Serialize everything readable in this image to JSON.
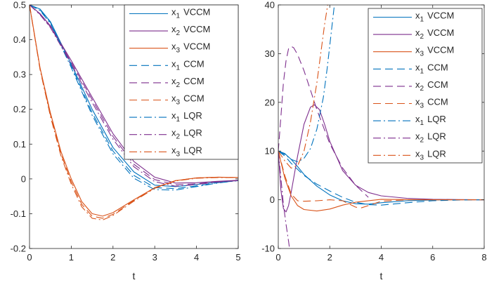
{
  "chart_data": [
    {
      "type": "line",
      "panel": "left",
      "xlabel": "t",
      "ylabel": "",
      "xlim": [
        0,
        5
      ],
      "ylim": [
        -0.2,
        0.5
      ],
      "xticks": [
        "0",
        "1",
        "2",
        "3",
        "4",
        "5"
      ],
      "yticks": [
        "-0.2",
        "-0.1",
        "0",
        "0.1",
        "0.2",
        "0.3",
        "0.4",
        "0.5"
      ],
      "grid": false,
      "legend_position": "top-right",
      "series": [
        {
          "name": "x1 VCCM",
          "label_main": "x",
          "label_sub": "1",
          "label_suffix": "VCCM",
          "color": "#0072BD",
          "style": "solid",
          "x": [
            0,
            0.25,
            0.5,
            1,
            1.5,
            2,
            2.5,
            3,
            3.5,
            4,
            4.5,
            5
          ],
          "y": [
            0.5,
            0.488,
            0.452,
            0.33,
            0.2,
            0.09,
            0.02,
            -0.018,
            -0.022,
            -0.016,
            -0.009,
            -0.004
          ]
        },
        {
          "name": "x2 VCCM",
          "label_main": "x",
          "label_sub": "2",
          "label_suffix": "VCCM",
          "color": "#7E2F8E",
          "style": "solid",
          "x": [
            0,
            0.25,
            0.5,
            1,
            1.5,
            2,
            2.5,
            3,
            3.5,
            4,
            4.5,
            5
          ],
          "y": [
            0.5,
            0.475,
            0.44,
            0.34,
            0.235,
            0.13,
            0.05,
            0.005,
            -0.012,
            -0.011,
            -0.007,
            -0.004
          ]
        },
        {
          "name": "x3 VCCM",
          "label_main": "x",
          "label_sub": "3",
          "label_suffix": "VCCM",
          "color": "#D95319",
          "style": "solid",
          "x": [
            0,
            0.25,
            0.5,
            0.75,
            1,
            1.25,
            1.5,
            1.75,
            2,
            2.5,
            3,
            3.5,
            4,
            4.5,
            5
          ],
          "y": [
            0.5,
            0.32,
            0.19,
            0.08,
            0.0,
            -0.065,
            -0.1,
            -0.107,
            -0.097,
            -0.06,
            -0.025,
            -0.005,
            0.003,
            0.005,
            0.004
          ]
        },
        {
          "name": "x1 CCM",
          "label_main": "x",
          "label_sub": "1",
          "label_suffix": "CCM",
          "color": "#0072BD",
          "style": "dash",
          "x": [
            0,
            0.25,
            0.5,
            1,
            1.5,
            2,
            2.5,
            3,
            3.5,
            4,
            4.5,
            5
          ],
          "y": [
            0.5,
            0.486,
            0.45,
            0.325,
            0.19,
            0.08,
            0.01,
            -0.025,
            -0.028,
            -0.02,
            -0.011,
            -0.005
          ]
        },
        {
          "name": "x2 CCM",
          "label_main": "x",
          "label_sub": "2",
          "label_suffix": "CCM",
          "color": "#7E2F8E",
          "style": "dash",
          "x": [
            0,
            0.25,
            0.5,
            1,
            1.5,
            2,
            2.5,
            3,
            3.5,
            4,
            4.5,
            5
          ],
          "y": [
            0.5,
            0.473,
            0.437,
            0.335,
            0.228,
            0.122,
            0.042,
            -0.002,
            -0.017,
            -0.014,
            -0.008,
            -0.005
          ]
        },
        {
          "name": "x3 CCM",
          "label_main": "x",
          "label_sub": "3",
          "label_suffix": "CCM",
          "color": "#D95319",
          "style": "dash",
          "x": [
            0,
            0.25,
            0.5,
            0.75,
            1,
            1.25,
            1.5,
            1.75,
            2,
            2.5,
            3,
            3.5,
            4,
            4.5,
            5
          ],
          "y": [
            0.5,
            0.318,
            0.185,
            0.073,
            -0.008,
            -0.073,
            -0.107,
            -0.113,
            -0.102,
            -0.062,
            -0.026,
            -0.005,
            0.003,
            0.005,
            0.004
          ]
        },
        {
          "name": "x1 LQR",
          "label_main": "x",
          "label_sub": "1",
          "label_suffix": "LQR",
          "color": "#0072BD",
          "style": "dashdot",
          "x": [
            0,
            0.25,
            0.5,
            1,
            1.5,
            2,
            2.5,
            3,
            3.5,
            4,
            4.5,
            5
          ],
          "y": [
            0.5,
            0.484,
            0.447,
            0.32,
            0.183,
            0.072,
            0.002,
            -0.031,
            -0.032,
            -0.022,
            -0.012,
            -0.005
          ]
        },
        {
          "name": "x2 LQR",
          "label_main": "x",
          "label_sub": "2",
          "label_suffix": "LQR",
          "color": "#7E2F8E",
          "style": "dashdot",
          "x": [
            0,
            0.25,
            0.5,
            1,
            1.5,
            2,
            2.5,
            3,
            3.5,
            4,
            4.5,
            5
          ],
          "y": [
            0.5,
            0.472,
            0.435,
            0.33,
            0.22,
            0.114,
            0.035,
            -0.008,
            -0.021,
            -0.016,
            -0.009,
            -0.005
          ]
        },
        {
          "name": "x3 LQR",
          "label_main": "x",
          "label_sub": "3",
          "label_suffix": "LQR",
          "color": "#D95319",
          "style": "dashdot",
          "x": [
            0,
            0.25,
            0.5,
            0.75,
            1,
            1.25,
            1.5,
            1.75,
            2,
            2.5,
            3,
            3.5,
            4,
            4.5,
            5
          ],
          "y": [
            0.5,
            0.315,
            0.18,
            0.068,
            -0.015,
            -0.08,
            -0.113,
            -0.118,
            -0.105,
            -0.064,
            -0.027,
            -0.006,
            0.002,
            0.004,
            0.004
          ]
        }
      ]
    },
    {
      "type": "line",
      "panel": "right",
      "xlabel": "t",
      "ylabel": "",
      "xlim": [
        0,
        8
      ],
      "ylim": [
        -10,
        40
      ],
      "xticks": [
        "0",
        "2",
        "4",
        "6",
        "8"
      ],
      "yticks": [
        "-10",
        "0",
        "10",
        "20",
        "30",
        "40"
      ],
      "grid": false,
      "legend_position": "top-right",
      "series": [
        {
          "name": "x1 VCCM",
          "label_main": "x",
          "label_sub": "1",
          "label_suffix": "VCCM",
          "color": "#0072BD",
          "style": "solid",
          "x": [
            0,
            0.25,
            0.5,
            0.75,
            1,
            1.5,
            2,
            2.5,
            3,
            3.5,
            4,
            5,
            6,
            7,
            8
          ],
          "y": [
            10,
            9.5,
            8.3,
            6.8,
            5.2,
            2.8,
            1.0,
            -0.2,
            -0.8,
            -0.9,
            -0.6,
            -0.2,
            -0.05,
            0,
            0
          ]
        },
        {
          "name": "x2 VCCM",
          "label_main": "x",
          "label_sub": "2",
          "label_suffix": "VCCM",
          "color": "#7E2F8E",
          "style": "solid",
          "x": [
            0,
            0.1,
            0.2,
            0.3,
            0.4,
            0.5,
            0.75,
            1,
            1.25,
            1.4,
            1.6,
            1.8,
            2,
            2.5,
            3,
            3.5,
            4,
            5,
            6,
            7,
            8
          ],
          "y": [
            10,
            2,
            -1.8,
            -2.5,
            -1.2,
            1.5,
            9,
            15.5,
            19,
            19.5,
            18.5,
            15.5,
            12,
            6,
            3,
            1.5,
            0.8,
            0.3,
            0.1,
            0.05,
            0
          ]
        },
        {
          "name": "x3 VCCM",
          "label_main": "x",
          "label_sub": "3",
          "label_suffix": "VCCM",
          "color": "#D95319",
          "style": "solid",
          "x": [
            0,
            0.25,
            0.5,
            0.75,
            1,
            1.5,
            2,
            2.5,
            3,
            4,
            5,
            6,
            8
          ],
          "y": [
            10,
            4.5,
            0.8,
            -1.2,
            -2.0,
            -2.3,
            -1.9,
            -1.1,
            -0.5,
            0.1,
            0.05,
            0,
            0
          ]
        },
        {
          "name": "x1 CCM",
          "label_main": "x",
          "label_sub": "1",
          "label_suffix": "CCM",
          "color": "#0072BD",
          "style": "dash",
          "x": [
            0,
            0.25,
            0.5,
            1,
            1.5,
            2,
            2.5,
            3,
            3.5,
            4,
            5,
            6,
            7,
            8
          ],
          "y": [
            10,
            9.0,
            7.5,
            5.0,
            3.2,
            1.8,
            0.5,
            -0.5,
            -1.0,
            -1.1,
            -0.6,
            -0.2,
            -0.05,
            0
          ]
        },
        {
          "name": "x2 CCM",
          "label_main": "x",
          "label_sub": "2",
          "label_suffix": "CCM",
          "color": "#7E2F8E",
          "style": "dash",
          "x": [
            0,
            0.1,
            0.2,
            0.3,
            0.4,
            0.5,
            0.6,
            0.75,
            1,
            1.25,
            1.5,
            2,
            2.5,
            3,
            3.5
          ],
          "y": [
            10,
            17,
            24,
            28.5,
            31,
            31.5,
            31.2,
            29.8,
            26.5,
            22.5,
            18.5,
            11.5,
            6.5,
            3,
            0.5
          ]
        },
        {
          "name": "x3 CCM",
          "label_main": "x",
          "label_sub": "3",
          "label_suffix": "CCM",
          "color": "#D95319",
          "style": "dash",
          "x": [
            0,
            0.25,
            0.5,
            0.75,
            1,
            1.5,
            2,
            2.5,
            3,
            3.2,
            3.5,
            4,
            5,
            6,
            8
          ],
          "y": [
            10,
            5,
            1.2,
            -0.2,
            -0.3,
            -0.2,
            0,
            -0.2,
            -1.5,
            -1.7,
            -1.2,
            -0.3,
            0,
            0,
            0
          ]
        },
        {
          "name": "x1 LQR",
          "label_main": "x",
          "label_sub": "1",
          "label_suffix": "LQR",
          "color": "#0072BD",
          "style": "dashdot",
          "x": [
            0,
            0.25,
            0.5,
            0.75,
            1,
            1.25,
            1.5,
            1.75,
            1.9,
            2.05,
            2.2
          ],
          "y": [
            10,
            9.3,
            8.3,
            7.8,
            8.5,
            10.5,
            14.5,
            21,
            27,
            34,
            41
          ]
        },
        {
          "name": "x2 LQR",
          "label_main": "x",
          "label_sub": "2",
          "label_suffix": "LQR",
          "color": "#7E2F8E",
          "style": "dashdot",
          "x": [
            0,
            0.1,
            0.2,
            0.3,
            0.4,
            0.45
          ],
          "y": [
            10,
            4.5,
            -1,
            -5,
            -8.5,
            -10.5
          ]
        },
        {
          "name": "x3 LQR",
          "label_main": "x",
          "label_sub": "3",
          "label_suffix": "LQR",
          "color": "#D95319",
          "style": "dashdot",
          "x": [
            0,
            0.25,
            0.5,
            0.75,
            1,
            1.25,
            1.5,
            1.65,
            1.8,
            1.95
          ],
          "y": [
            10,
            8,
            6.5,
            7,
            10,
            16,
            24,
            30,
            36,
            41
          ]
        }
      ]
    }
  ]
}
